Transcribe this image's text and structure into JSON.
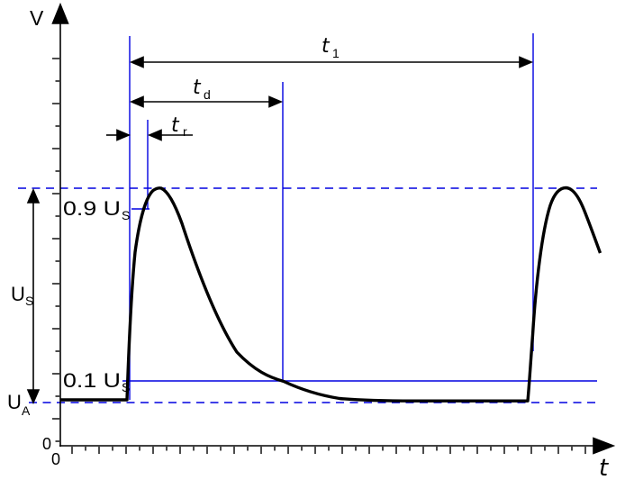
{
  "colors": {
    "construction_blue": "#0000e0",
    "curve_black": "#000000",
    "dimension_black": "#000000"
  },
  "axes": {
    "y_label": "V",
    "x_label": "t",
    "y_origin": "0",
    "x_origin": "0"
  },
  "labels": {
    "t1": {
      "main": "t",
      "sub": "1"
    },
    "td": {
      "main": "t",
      "sub": "d"
    },
    "tr": {
      "main": "t",
      "sub": "r"
    },
    "level_high": {
      "main": "0.9 U",
      "sub": "S"
    },
    "level_low": {
      "main": "0.1 U",
      "sub": "S"
    },
    "amplitude": {
      "main": "U",
      "sub": "S"
    },
    "baseline": {
      "main": "U",
      "sub": "A"
    }
  }
}
